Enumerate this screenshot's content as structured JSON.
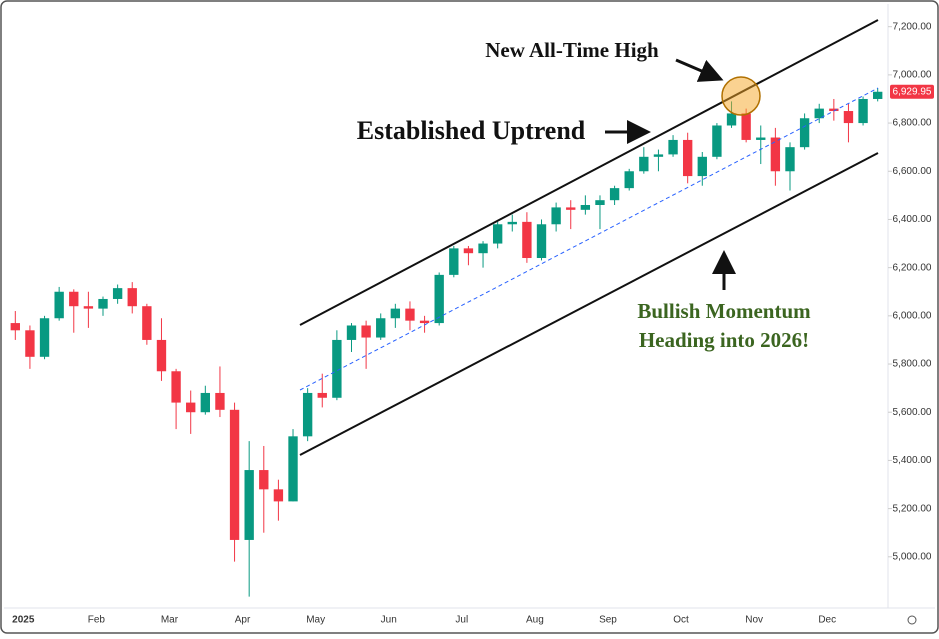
{
  "chart_data": {
    "type": "candlestick",
    "categories": [
      "2025",
      null,
      null,
      null,
      null,
      "Feb",
      null,
      null,
      null,
      null,
      "Mar",
      null,
      null,
      null,
      null,
      "Apr",
      null,
      null,
      null,
      null,
      "May",
      null,
      null,
      null,
      null,
      "Jun",
      null,
      null,
      null,
      null,
      "Jul",
      null,
      null,
      null,
      null,
      "Aug",
      null,
      null,
      null,
      null,
      "Sep",
      null,
      null,
      null,
      null,
      "Oct",
      null,
      null,
      null,
      null,
      "Nov",
      null,
      null,
      null,
      null,
      "Dec",
      null,
      null,
      null,
      null
    ],
    "ohlc": [
      [
        5970,
        6020,
        5900,
        5940
      ],
      [
        5940,
        5960,
        5780,
        5830
      ],
      [
        5830,
        6000,
        5820,
        5990
      ],
      [
        5990,
        6120,
        5980,
        6100
      ],
      [
        6100,
        6110,
        5930,
        6040
      ],
      [
        6040,
        6100,
        5950,
        6030
      ],
      [
        6030,
        6080,
        6000,
        6070
      ],
      [
        6070,
        6130,
        6050,
        6115
      ],
      [
        6115,
        6140,
        6010,
        6040
      ],
      [
        6040,
        6050,
        5880,
        5900
      ],
      [
        5900,
        5990,
        5730,
        5770
      ],
      [
        5770,
        5780,
        5530,
        5640
      ],
      [
        5640,
        5690,
        5510,
        5600
      ],
      [
        5600,
        5710,
        5590,
        5680
      ],
      [
        5680,
        5790,
        5580,
        5610
      ],
      [
        5610,
        5640,
        4980,
        5070
      ],
      [
        5070,
        5480,
        4835,
        5360
      ],
      [
        5360,
        5460,
        5100,
        5280
      ],
      [
        5280,
        5320,
        5150,
        5230
      ],
      [
        5230,
        5530,
        5230,
        5500
      ],
      [
        5500,
        5700,
        5480,
        5680
      ],
      [
        5680,
        5760,
        5620,
        5660
      ],
      [
        5660,
        5940,
        5650,
        5900
      ],
      [
        5900,
        5970,
        5850,
        5960
      ],
      [
        5960,
        5980,
        5780,
        5910
      ],
      [
        5910,
        6010,
        5900,
        5990
      ],
      [
        5990,
        6050,
        5950,
        6030
      ],
      [
        6030,
        6060,
        5940,
        5980
      ],
      [
        5980,
        6000,
        5930,
        5970
      ],
      [
        5970,
        6180,
        5960,
        6170
      ],
      [
        6170,
        6290,
        6160,
        6280
      ],
      [
        6280,
        6290,
        6210,
        6260
      ],
      [
        6260,
        6310,
        6200,
        6300
      ],
      [
        6300,
        6390,
        6280,
        6380
      ],
      [
        6380,
        6420,
        6350,
        6390
      ],
      [
        6390,
        6430,
        6220,
        6240
      ],
      [
        6240,
        6400,
        6230,
        6380
      ],
      [
        6380,
        6470,
        6350,
        6450
      ],
      [
        6450,
        6480,
        6360,
        6440
      ],
      [
        6440,
        6500,
        6420,
        6460
      ],
      [
        6460,
        6500,
        6360,
        6480
      ],
      [
        6480,
        6540,
        6460,
        6530
      ],
      [
        6530,
        6610,
        6520,
        6600
      ],
      [
        6600,
        6700,
        6590,
        6660
      ],
      [
        6660,
        6690,
        6600,
        6670
      ],
      [
        6670,
        6750,
        6660,
        6730
      ],
      [
        6730,
        6760,
        6550,
        6580
      ],
      [
        6580,
        6680,
        6540,
        6660
      ],
      [
        6660,
        6800,
        6650,
        6790
      ],
      [
        6790,
        6890,
        6780,
        6840
      ],
      [
        6840,
        6860,
        6720,
        6730
      ],
      [
        6730,
        6790,
        6630,
        6740
      ],
      [
        6740,
        6780,
        6540,
        6600
      ],
      [
        6600,
        6720,
        6520,
        6700
      ],
      [
        6700,
        6840,
        6690,
        6820
      ],
      [
        6820,
        6880,
        6800,
        6860
      ],
      [
        6860,
        6900,
        6810,
        6850
      ],
      [
        6850,
        6880,
        6720,
        6800
      ],
      [
        6800,
        6910,
        6790,
        6900
      ],
      [
        6900,
        6945,
        6890,
        6929.95
      ]
    ],
    "up_color": "#089981",
    "down_color": "#f23645",
    "ylim": [
      4800,
      7290
    ],
    "yticks": [
      {
        "value": 5000,
        "label": "5,000.00"
      },
      {
        "value": 5200,
        "label": "5,200.00"
      },
      {
        "value": 5400,
        "label": "5,400.00"
      },
      {
        "value": 5600,
        "label": "5,600.00"
      },
      {
        "value": 5800,
        "label": "5,800.00"
      },
      {
        "value": 6000,
        "label": "6,000.00"
      },
      {
        "value": 6200,
        "label": "6,200.00"
      },
      {
        "value": 6400,
        "label": "6,400.00"
      },
      {
        "value": 6600,
        "label": "6,600.00"
      },
      {
        "value": 6800,
        "label": "6,800.00"
      },
      {
        "value": 7000,
        "label": "7,000.00"
      },
      {
        "value": 7200,
        "label": "7,200.00"
      }
    ],
    "last_price": {
      "value": 6929.95,
      "label": "6,929.95"
    },
    "annotations": [
      "New All-Time High",
      "Established Uptrend",
      "Bullish Momentum",
      "Heading into 2026!"
    ]
  }
}
